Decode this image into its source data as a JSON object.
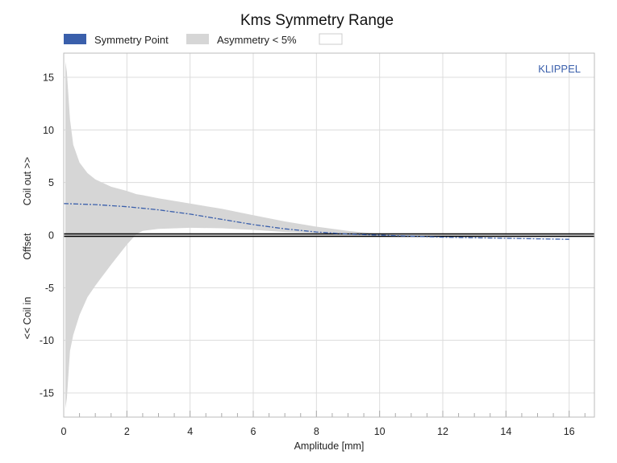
{
  "chart_data": {
    "type": "area",
    "title": "Kms Symmetry Range",
    "xlabel": "Amplitude [mm]",
    "ylabel_parts": [
      "<< Coil in",
      "Offset",
      "Coil out >>"
    ],
    "watermark": "KLIPPEL",
    "xlim": [
      0,
      16.8
    ],
    "ylim": [
      -17.3,
      17.3
    ],
    "x_ticks": [
      0,
      2,
      4,
      6,
      8,
      10,
      12,
      14,
      16
    ],
    "y_ticks": [
      -15,
      -10,
      -5,
      0,
      5,
      10,
      15
    ],
    "grid": true,
    "legend_position": "top",
    "legend": [
      {
        "label": "Symmetry Point",
        "color": "#3a5fab",
        "kind": "patch"
      },
      {
        "label": "Asymmetry < 5%",
        "color": "#d6d6d6",
        "kind": "patch"
      },
      {
        "label": "",
        "color": "#ffffff",
        "kind": "outline"
      }
    ],
    "series": [
      {
        "name": "Symmetry Point",
        "color": "#3a5fab",
        "style": "dashed",
        "x": [
          0,
          1,
          2,
          3,
          4,
          5,
          6,
          7,
          8,
          9,
          10,
          11,
          12,
          13,
          14,
          15,
          16
        ],
        "y": [
          3.0,
          2.9,
          2.7,
          2.4,
          2.0,
          1.5,
          1.0,
          0.6,
          0.3,
          0.1,
          0.0,
          -0.1,
          -0.2,
          -0.25,
          -0.3,
          -0.35,
          -0.4
        ]
      },
      {
        "name": "Asymmetry < 5%",
        "color": "#d6d6d6",
        "x": [
          0.05,
          0.1,
          0.2,
          0.3,
          0.5,
          0.75,
          1.0,
          1.5,
          2.0,
          2.3,
          2.5,
          3.0,
          4.0,
          5.0,
          6.0,
          7.0,
          8.0,
          9.0,
          10.0,
          10.5
        ],
        "upper": [
          16.5,
          15.5,
          11.0,
          8.6,
          6.9,
          5.9,
          5.3,
          4.6,
          4.2,
          3.9,
          3.8,
          3.5,
          3.0,
          2.5,
          1.9,
          1.3,
          0.8,
          0.4,
          0.1,
          0.0
        ],
        "lower": [
          -16.5,
          -15.5,
          -11.0,
          -9.5,
          -7.6,
          -5.9,
          -4.8,
          -2.8,
          -0.9,
          0.1,
          0.4,
          0.6,
          0.7,
          0.65,
          0.5,
          0.3,
          0.2,
          0.1,
          0.0,
          0.0
        ]
      }
    ],
    "zero_line": {
      "y": 0,
      "color": "#000000"
    }
  }
}
